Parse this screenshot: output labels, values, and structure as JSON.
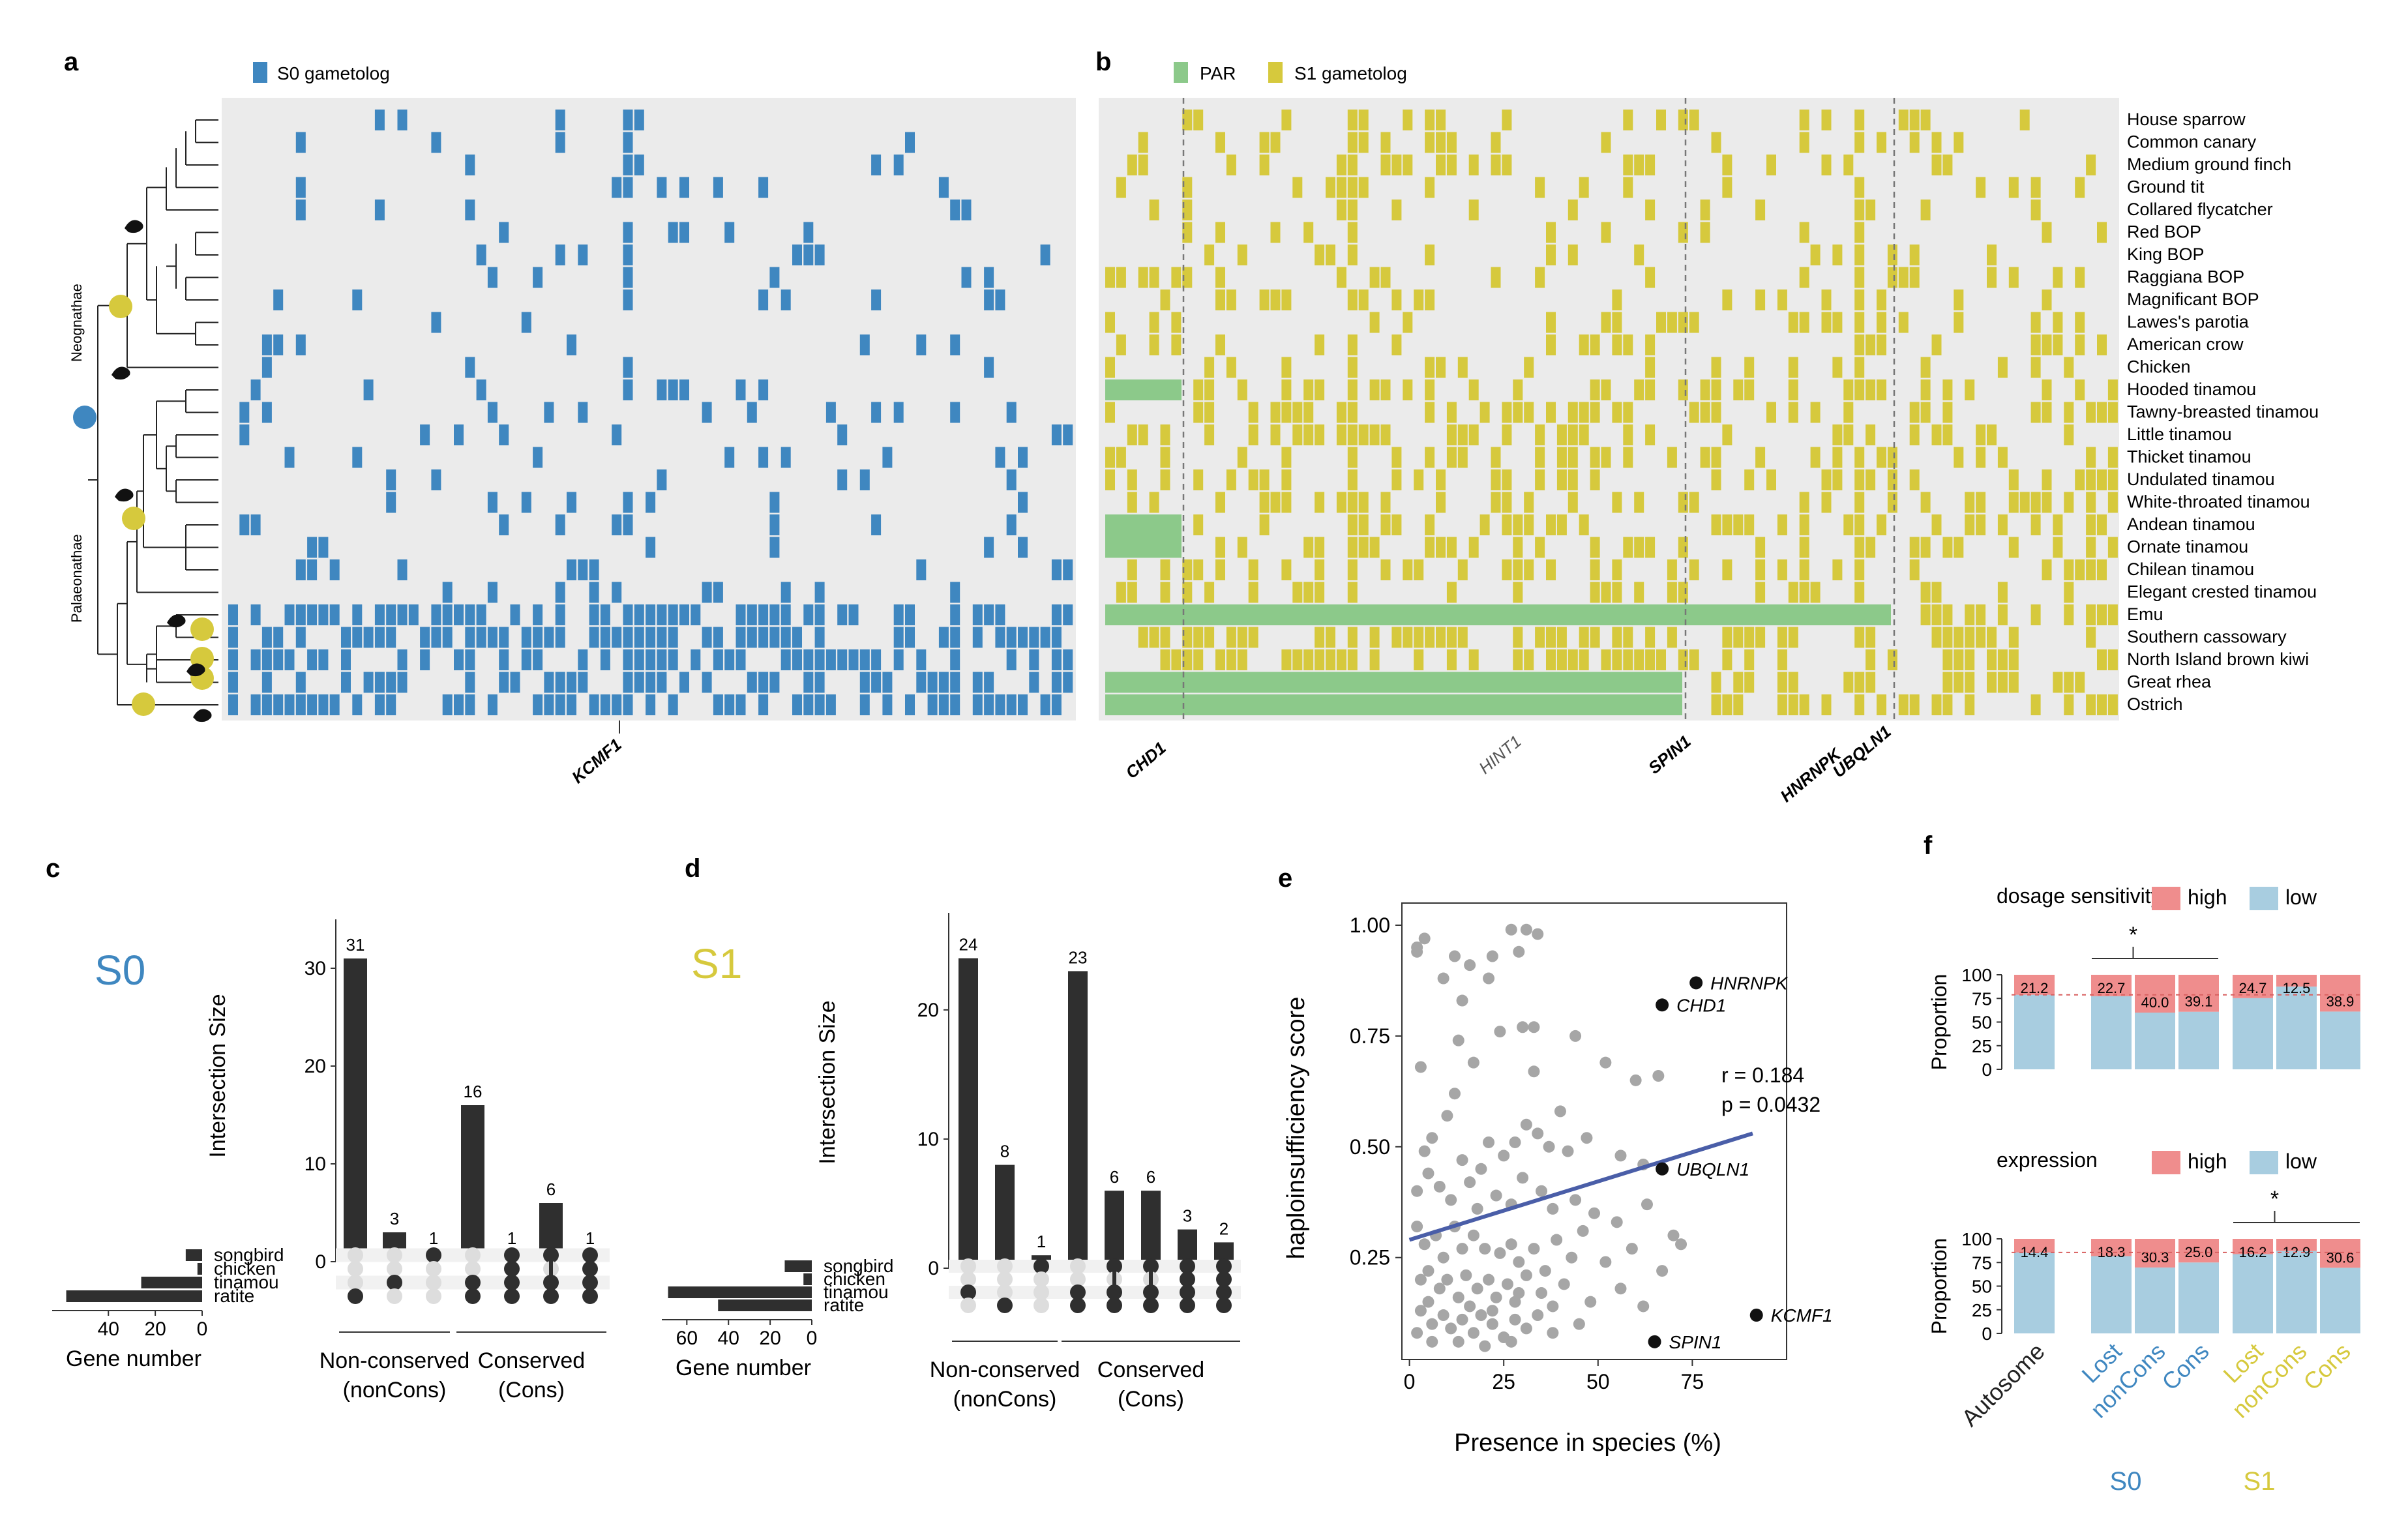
{
  "panel_labels": {
    "a": "a",
    "b": "b",
    "c": "c",
    "d": "d",
    "e": "e",
    "f": "f"
  },
  "colors": {
    "s0": "#3f87c0",
    "s1": "#d6c93d",
    "par": "#8cc98a",
    "grid_bg": "#ebebeb",
    "bar": "#2f2f2f",
    "dot_off": "#dddddd",
    "high": "#ef8d8d",
    "low": "#a8cde0",
    "reg": "#4a5ea8",
    "pt": "#a6a6a6"
  },
  "panel_a": {
    "legend": "S0 gametolog",
    "gene_label": "KCMF1",
    "clade_labels": [
      "Neognathae",
      "Palaeonathae"
    ]
  },
  "panel_b": {
    "legend_par": "PAR",
    "legend_s1": "S1 gametolog",
    "gene_labels": [
      "CHD1",
      "HINT1",
      "SPIN1",
      "HNRNPK",
      "UBQLN1"
    ],
    "species": [
      "House sparrow",
      "Common canary",
      "Medium ground finch",
      "Ground tit",
      "Collared flycatcher",
      "Red BOP",
      "King BOP",
      "Raggiana BOP",
      "Magnificant BOP",
      "Lawes's parotia",
      "American crow",
      "Chicken",
      "Hooded tinamou",
      "Tawny-breasted tinamou",
      "Little tinamou",
      "Thicket tinamou",
      "Undulated tinamou",
      "White-throated tinamou",
      "Andean tinamou",
      "Ornate tinamou",
      "Chilean tinamou",
      "Elegant crested tinamou",
      "Emu",
      "Southern cassowary",
      "North Island brown kiwi",
      "Great rhea",
      "Ostrich"
    ]
  },
  "chart_data": [
    {
      "panel": "c",
      "type": "bar",
      "big_label": "S0",
      "ylabel": "Intersection Size",
      "yticks": [
        0,
        10,
        20,
        30
      ],
      "ylim": [
        0,
        33
      ],
      "values": [
        31,
        3,
        1,
        16,
        1,
        6,
        1
      ],
      "value_labels": [
        "31",
        "3",
        "1",
        "16",
        "1",
        "6",
        "1"
      ],
      "sets": [
        "songbird",
        "chicken",
        "tinamou",
        "ratite"
      ],
      "set_sizes": [
        7,
        2,
        26,
        58
      ],
      "set_xticks": [
        "40",
        "20",
        "0"
      ],
      "set_xlabel": "Gene number",
      "set_xlim": [
        0,
        64
      ],
      "membership": [
        [
          0,
          0,
          0,
          1
        ],
        [
          0,
          0,
          1,
          0
        ],
        [
          1,
          0,
          0,
          0
        ],
        [
          0,
          0,
          1,
          1
        ],
        [
          1,
          1,
          1,
          1
        ],
        [
          1,
          0,
          1,
          1
        ],
        [
          1,
          1,
          1,
          1
        ]
      ],
      "group_labels": [
        [
          "Non-conserved",
          "(nonCons)"
        ],
        [
          "Conserved",
          "(Cons)"
        ]
      ]
    },
    {
      "panel": "d",
      "type": "bar",
      "big_label": "S1",
      "ylabel": "Intersection Size",
      "yticks": [
        0,
        10,
        20
      ],
      "ylim": [
        0,
        26
      ],
      "values": [
        24,
        8,
        1,
        23,
        6,
        6,
        3,
        2
      ],
      "value_labels": [
        "24",
        "8",
        "1",
        "23",
        "6",
        "6",
        "3",
        "2"
      ],
      "sets": [
        "songbird",
        "chicken",
        "tinamou",
        "ratite"
      ],
      "set_sizes": [
        13,
        4,
        69,
        45
      ],
      "set_xticks": [
        "60",
        "40",
        "20",
        "0"
      ],
      "set_xlabel": "Gene number",
      "set_xlim": [
        0,
        72
      ],
      "membership": [
        [
          0,
          0,
          1,
          0
        ],
        [
          0,
          0,
          0,
          1
        ],
        [
          1,
          0,
          0,
          0
        ],
        [
          0,
          0,
          1,
          1
        ],
        [
          1,
          0,
          1,
          1
        ],
        [
          1,
          0,
          1,
          1
        ],
        [
          1,
          1,
          1,
          1
        ],
        [
          1,
          1,
          1,
          1
        ]
      ],
      "group_labels": [
        [
          "Non-conserved",
          "(nonCons)"
        ],
        [
          "Conserved",
          "(Cons)"
        ]
      ]
    },
    {
      "panel": "e",
      "type": "scatter",
      "xlabel": "Presence in species (%)",
      "ylabel": "haploinsufficiency score",
      "xticks": [
        0,
        25,
        50,
        75
      ],
      "yticks": [
        "0.25",
        "0.50",
        "0.75",
        "1.00"
      ],
      "xlim": [
        -2,
        100
      ],
      "ylim": [
        0.02,
        1.05
      ],
      "annotation": [
        "r = 0.184",
        "p = 0.0432"
      ],
      "regression": {
        "x": [
          0,
          91
        ],
        "y": [
          0.29,
          0.53
        ]
      },
      "highlighted": [
        {
          "label": "HNRNPK",
          "x": 76,
          "y": 0.87
        },
        {
          "label": "CHD1",
          "x": 67,
          "y": 0.82
        },
        {
          "label": "UBQLN1",
          "x": 67,
          "y": 0.45
        },
        {
          "label": "KCMF1",
          "x": 92,
          "y": 0.12
        },
        {
          "label": "SPIN1",
          "x": 65,
          "y": 0.06
        }
      ],
      "points": [
        [
          2,
          0.95
        ],
        [
          2,
          0.94
        ],
        [
          4,
          0.97
        ],
        [
          9,
          0.88
        ],
        [
          12,
          0.93
        ],
        [
          16,
          0.91
        ],
        [
          27,
          0.99
        ],
        [
          31,
          0.99
        ],
        [
          34,
          0.98
        ],
        [
          22,
          0.93
        ],
        [
          29,
          0.94
        ],
        [
          21,
          0.88
        ],
        [
          14,
          0.83
        ],
        [
          13,
          0.74
        ],
        [
          24,
          0.76
        ],
        [
          30,
          0.77
        ],
        [
          33,
          0.77
        ],
        [
          12,
          0.62
        ],
        [
          17,
          0.69
        ],
        [
          3,
          0.68
        ],
        [
          33,
          0.67
        ],
        [
          44,
          0.75
        ],
        [
          52,
          0.69
        ],
        [
          60,
          0.65
        ],
        [
          66,
          0.66
        ],
        [
          10,
          0.57
        ],
        [
          40,
          0.58
        ],
        [
          4,
          0.49
        ],
        [
          6,
          0.52
        ],
        [
          14,
          0.47
        ],
        [
          19,
          0.45
        ],
        [
          21,
          0.51
        ],
        [
          25,
          0.48
        ],
        [
          28,
          0.51
        ],
        [
          31,
          0.55
        ],
        [
          34,
          0.53
        ],
        [
          37,
          0.5
        ],
        [
          42,
          0.49
        ],
        [
          47,
          0.52
        ],
        [
          56,
          0.48
        ],
        [
          62,
          0.46
        ],
        [
          2,
          0.4
        ],
        [
          5,
          0.44
        ],
        [
          8,
          0.41
        ],
        [
          11,
          0.38
        ],
        [
          16,
          0.42
        ],
        [
          18,
          0.36
        ],
        [
          23,
          0.39
        ],
        [
          27,
          0.37
        ],
        [
          30,
          0.43
        ],
        [
          35,
          0.4
        ],
        [
          38,
          0.36
        ],
        [
          44,
          0.38
        ],
        [
          49,
          0.35
        ],
        [
          55,
          0.33
        ],
        [
          63,
          0.37
        ],
        [
          70,
          0.3
        ],
        [
          2,
          0.32
        ],
        [
          4,
          0.28
        ],
        [
          7,
          0.3
        ],
        [
          9,
          0.25
        ],
        [
          12,
          0.32
        ],
        [
          14,
          0.27
        ],
        [
          17,
          0.3
        ],
        [
          20,
          0.27
        ],
        [
          24,
          0.26
        ],
        [
          27,
          0.28
        ],
        [
          29,
          0.24
        ],
        [
          33,
          0.27
        ],
        [
          36,
          0.22
        ],
        [
          39,
          0.29
        ],
        [
          43,
          0.25
        ],
        [
          46,
          0.31
        ],
        [
          52,
          0.24
        ],
        [
          59,
          0.27
        ],
        [
          67,
          0.22
        ],
        [
          72,
          0.28
        ],
        [
          3,
          0.2
        ],
        [
          5,
          0.22
        ],
        [
          8,
          0.18
        ],
        [
          10,
          0.2
        ],
        [
          13,
          0.16
        ],
        [
          15,
          0.21
        ],
        [
          18,
          0.18
        ],
        [
          21,
          0.2
        ],
        [
          23,
          0.16
        ],
        [
          26,
          0.19
        ],
        [
          28,
          0.15
        ],
        [
          31,
          0.21
        ],
        [
          35,
          0.17
        ],
        [
          41,
          0.19
        ],
        [
          48,
          0.15
        ],
        [
          56,
          0.18
        ],
        [
          62,
          0.14
        ],
        [
          3,
          0.13
        ],
        [
          6,
          0.1
        ],
        [
          9,
          0.12
        ],
        [
          11,
          0.09
        ],
        [
          14,
          0.11
        ],
        [
          17,
          0.08
        ],
        [
          19,
          0.12
        ],
        [
          22,
          0.1
        ],
        [
          25,
          0.07
        ],
        [
          28,
          0.11
        ],
        [
          31,
          0.09
        ],
        [
          2,
          0.08
        ],
        [
          6,
          0.06
        ],
        [
          13,
          0.06
        ],
        [
          20,
          0.05
        ],
        [
          27,
          0.06
        ],
        [
          38,
          0.08
        ],
        [
          45,
          0.1
        ],
        [
          5,
          0.15
        ],
        [
          16,
          0.14
        ],
        [
          22,
          0.13
        ],
        [
          29,
          0.17
        ],
        [
          34,
          0.12
        ],
        [
          38,
          0.14
        ]
      ]
    },
    {
      "panel": "f",
      "type": "bar",
      "subpanels": [
        {
          "legend_title": "dosage sensitivity",
          "categories": [
            "Autosome",
            "Lost",
            "nonCons",
            "Cons",
            "Lost",
            "nonCons",
            "Cons"
          ],
          "high_pct": [
            21.2,
            22.7,
            40.0,
            39.1,
            24.7,
            12.5,
            38.9
          ],
          "value_labels": [
            "21.2",
            "22.7",
            "40.0",
            "39.1",
            "24.7",
            "12.5",
            "38.9"
          ],
          "significance": "*",
          "sig_between": [
            "Lost",
            "nonCons"
          ]
        },
        {
          "legend_title": "expression",
          "categories": [
            "Autosome",
            "Lost",
            "nonCons",
            "Cons",
            "Lost",
            "nonCons",
            "Cons"
          ],
          "high_pct": [
            14.4,
            18.3,
            30.3,
            25.0,
            16.2,
            12.9,
            30.6
          ],
          "value_labels": [
            "14.4",
            "18.3",
            "30.3",
            "25.0",
            "16.2",
            "12.9",
            "30.6"
          ],
          "significance": "*",
          "sig_between": [
            "Lost",
            "nonCons"
          ]
        }
      ],
      "ylabel": "Proportion",
      "yticks": [
        0,
        25,
        50,
        75,
        100
      ],
      "legend_labels": [
        "high",
        "low"
      ],
      "xtick_labels": [
        "Autosome",
        "Lost",
        "nonCons",
        "Cons",
        "Lost",
        "nonCons",
        "Cons"
      ],
      "group_labels": [
        "S0",
        "S1"
      ]
    }
  ]
}
